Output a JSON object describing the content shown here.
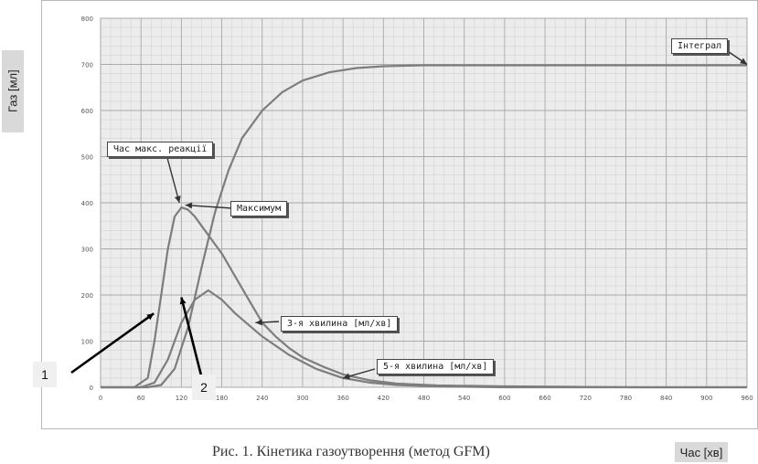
{
  "chart_data": {
    "type": "line",
    "ylabel": "Газ [мл]",
    "xlabel": "Час [хв]",
    "xlim": [
      0,
      960
    ],
    "ylim": [
      0,
      800
    ],
    "x_ticks": [
      0,
      60,
      120,
      180,
      240,
      300,
      360,
      420,
      480,
      540,
      600,
      660,
      720,
      780,
      840,
      900,
      960
    ],
    "y_ticks": [
      0,
      100,
      200,
      300,
      400,
      500,
      600,
      700,
      800
    ],
    "grid": true,
    "series": [
      {
        "name": "Інтеграл",
        "color": "#7d7d7d",
        "x": [
          0,
          40,
          70,
          90,
          110,
          130,
          150,
          170,
          190,
          210,
          240,
          270,
          300,
          340,
          380,
          420,
          480,
          600,
          720,
          840,
          960
        ],
        "y": [
          0,
          0,
          0,
          5,
          40,
          130,
          260,
          380,
          470,
          540,
          600,
          640,
          665,
          683,
          692,
          696,
          698,
          698,
          698,
          698,
          698
        ]
      },
      {
        "name": "3-я хвилина [мл/хв]",
        "color": "#7d7d7d",
        "x": [
          0,
          20,
          50,
          70,
          80,
          90,
          100,
          110,
          120,
          130,
          140,
          150,
          160,
          180,
          200,
          220,
          240,
          260,
          280,
          300,
          330,
          360,
          400,
          440,
          500,
          600,
          700,
          800,
          960
        ],
        "y": [
          0,
          0,
          0,
          20,
          100,
          200,
          300,
          370,
          390,
          385,
          370,
          350,
          330,
          290,
          240,
          190,
          140,
          110,
          85,
          65,
          45,
          28,
          15,
          8,
          4,
          2,
          1,
          0,
          0
        ]
      },
      {
        "name": "5-я хвилина [мл/хв]",
        "color": "#7d7d7d",
        "x": [
          0,
          60,
          80,
          100,
          120,
          140,
          160,
          180,
          200,
          240,
          280,
          320,
          360,
          400,
          440,
          500,
          600,
          960
        ],
        "y": [
          0,
          0,
          10,
          60,
          140,
          190,
          210,
          190,
          160,
          110,
          70,
          40,
          20,
          10,
          5,
          2,
          0,
          0
        ]
      }
    ],
    "annotations": [
      "Час макс. реакції",
      "Максимум",
      "Інтеграл",
      "3-я хвилина [мл/хв]",
      "5-я хвилина [мл/хв]"
    ],
    "markers": [
      "1",
      "2"
    ]
  },
  "caption": "Рис. 1. Кінетика газоутворення (метод GFM)"
}
